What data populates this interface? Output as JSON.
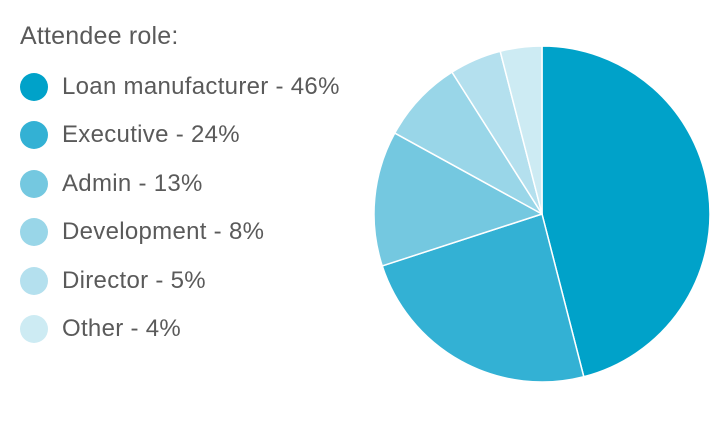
{
  "chart_data": {
    "type": "pie",
    "title": "Attendee role:",
    "slices": [
      {
        "label": "Loan manufacturer - 46%",
        "value": 46,
        "color": "#00a2c9"
      },
      {
        "label": "Executive - 24%",
        "value": 24,
        "color": "#33b1d4"
      },
      {
        "label": "Admin - 13%",
        "value": 13,
        "color": "#74c8e0"
      },
      {
        "label": "Development - 8%",
        "value": 8,
        "color": "#99d6e8"
      },
      {
        "label": "Director - 5%",
        "value": 5,
        "color": "#b4e0ee"
      },
      {
        "label": "Other - 4%",
        "value": 4,
        "color": "#cdebf3"
      }
    ],
    "legend_position": "left"
  }
}
